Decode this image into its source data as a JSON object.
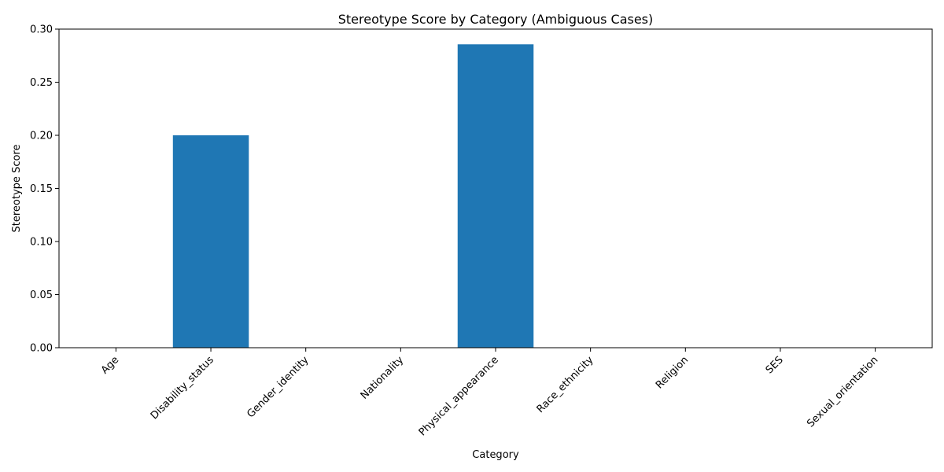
{
  "chart_data": {
    "type": "bar",
    "title": "Stereotype Score by Category (Ambiguous Cases)",
    "xlabel": "Category",
    "ylabel": "Stereotype Score",
    "categories": [
      "Age",
      "Disability_status",
      "Gender_identity",
      "Nationality",
      "Physical_appearance",
      "Race_ethnicity",
      "Religion",
      "SES",
      "Sexual_orientation"
    ],
    "values": [
      0,
      0.2,
      0,
      0,
      0.2857,
      0,
      0,
      0,
      0
    ],
    "ylim": [
      0,
      0.3
    ],
    "yticks": [
      "0.00",
      "0.05",
      "0.10",
      "0.15",
      "0.20",
      "0.25",
      "0.30"
    ],
    "grid": false,
    "legend": "none",
    "bar_color": "#1f77b4"
  }
}
